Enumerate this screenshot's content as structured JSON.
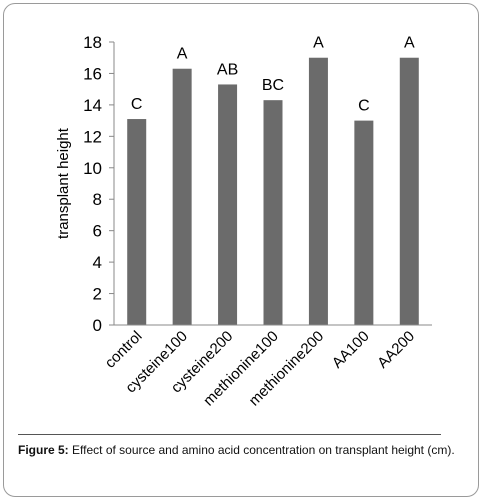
{
  "chart_data": {
    "type": "bar",
    "categories": [
      "control",
      "cysteine100",
      "cysteine200",
      "methionine100",
      "methionine200",
      "AA100",
      "AA200"
    ],
    "values": [
      13.1,
      16.3,
      15.3,
      14.3,
      17.0,
      13.0,
      17.0
    ],
    "annotations": [
      "C",
      "A",
      "AB",
      "BC",
      "A",
      "C",
      "A"
    ],
    "ylabel": "transplant height",
    "xlabel": "",
    "ylim": [
      0,
      18
    ],
    "yticks": [
      0,
      2,
      4,
      6,
      8,
      10,
      12,
      14,
      16,
      18
    ],
    "bar_color": "#6b6b6b",
    "grid": false,
    "legend": false
  },
  "caption": {
    "label": "Figure 5:",
    "text": "Effect of source and amino acid concentration on transplant height (cm)."
  }
}
